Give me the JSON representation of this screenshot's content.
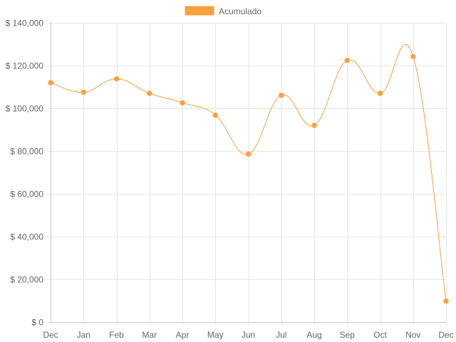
{
  "chart_data": {
    "type": "line",
    "title": "",
    "xlabel": "",
    "ylabel": "",
    "categories": [
      "Dec",
      "Jan",
      "Feb",
      "Mar",
      "Apr",
      "May",
      "Jun",
      "Jul",
      "Aug",
      "Sep",
      "Oct",
      "Nov",
      "Dec"
    ],
    "series": [
      {
        "name": "Acumulado",
        "color": "#ffa040",
        "values": [
          112000,
          107500,
          113800,
          107000,
          102600,
          96800,
          78600,
          106100,
          92000,
          122400,
          107000,
          124200,
          9800
        ]
      }
    ],
    "ylim": [
      0,
      140000
    ],
    "y_ticks": [
      0,
      20000,
      40000,
      60000,
      80000,
      100000,
      120000,
      140000
    ],
    "y_tick_labels": [
      "$ 0",
      "$ 20,000",
      "$ 40,000",
      "$ 60,000",
      "$ 80,000",
      "$ 100,000",
      "$ 120,000",
      "$ 140,000"
    ],
    "grid": true,
    "legend_position": "top-center",
    "smooth": true
  }
}
